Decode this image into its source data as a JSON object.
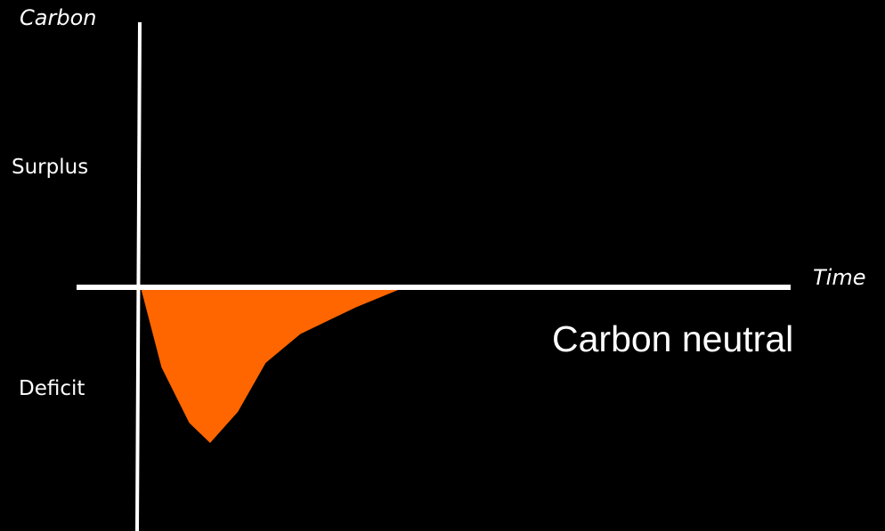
{
  "chart_data": {
    "type": "area",
    "xlabel": "Time",
    "ylabel": "Carbon",
    "region_labels": {
      "positive": "Surplus",
      "negative": "Deficit"
    },
    "annotation": "Carbon neutral",
    "fill_color": "#FF6600",
    "axis_color": "#FFFFFF",
    "background_color": "#000000",
    "xlim": [
      0,
      100
    ],
    "ylim": [
      -100,
      100
    ],
    "series": [
      {
        "x": [
          0,
          3,
          7,
          10,
          14,
          18,
          23,
          31,
          38
        ],
        "values": [
          0,
          -36,
          -61,
          -70,
          -56,
          -34,
          -21,
          -9,
          0
        ]
      }
    ]
  }
}
